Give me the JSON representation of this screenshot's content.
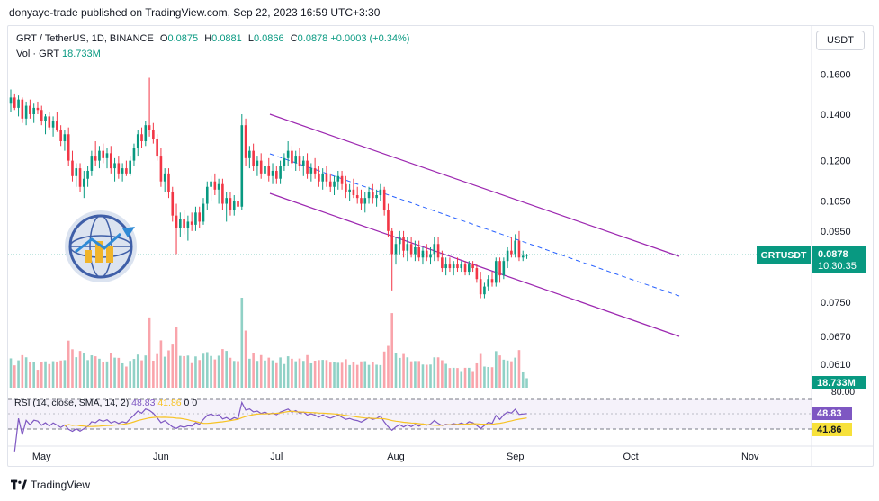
{
  "publish_line": "donyaye-trade published on TradingView.com, Sep 22, 2023 16:59 UTC+3:30",
  "legend": {
    "symbol": "GRT / TetherUS, 1D, BINANCE",
    "open_label": "O",
    "open": "0.0875",
    "high_label": "H",
    "high": "0.0881",
    "low_label": "L",
    "low": "0.0866",
    "close_label": "C",
    "close": "0.0878",
    "change": "+0.0003 (+0.34%)",
    "vol_label": "Vol · GRT",
    "vol": "18.733M"
  },
  "currency_button": "USDT",
  "price_badge": {
    "symbol": "GRTUSDT",
    "price": "0.0878",
    "countdown": "10:30:35"
  },
  "volume_badge": "18.733M",
  "rsi": {
    "label": "RSI (14, close, SMA, 14, 2)",
    "rsi_value": "48.83",
    "sma_value": "41.86",
    "extra_1": "0",
    "extra_2": "0",
    "level_label": "80.00"
  },
  "footer": {
    "brand": "TradingView"
  },
  "colors": {
    "up": "#089981",
    "down": "#f23645",
    "channel": "#9c27b0",
    "midline": "#2962ff",
    "rsi": "#7e57c2",
    "rsi_sma": "#f7c325"
  },
  "chart_data": {
    "type": "candlestick",
    "price_axis_ticks": [
      0.16,
      0.14,
      0.12,
      0.105,
      0.095,
      0.075,
      0.067,
      0.061
    ],
    "price_axis_labels": [
      "0.1600",
      "0.1400",
      "0.1200",
      "0.1050",
      "0.0950",
      "0.0750",
      "0.0670",
      "0.0610"
    ],
    "log_scale": true,
    "time_axis_labels": [
      "May",
      "Jun",
      "Jul",
      "Aug",
      "Sep",
      "Oct",
      "Nov"
    ],
    "time_axis_days": [
      0,
      31,
      61,
      92,
      123,
      153,
      184
    ],
    "last_price": 0.0878,
    "candles_start": "2023-04-23",
    "candles_ohlc": [
      [
        0.145,
        0.152,
        0.141,
        0.148
      ],
      [
        0.148,
        0.15,
        0.142,
        0.143
      ],
      [
        0.143,
        0.149,
        0.139,
        0.147
      ],
      [
        0.147,
        0.148,
        0.136,
        0.138
      ],
      [
        0.138,
        0.146,
        0.135,
        0.144
      ],
      [
        0.144,
        0.147,
        0.138,
        0.14
      ],
      [
        0.14,
        0.145,
        0.136,
        0.143
      ],
      [
        0.143,
        0.146,
        0.14,
        0.142
      ],
      [
        0.142,
        0.144,
        0.135,
        0.137
      ],
      [
        0.137,
        0.14,
        0.131,
        0.139
      ],
      [
        0.139,
        0.141,
        0.133,
        0.134
      ],
      [
        0.134,
        0.139,
        0.13,
        0.137
      ],
      [
        0.137,
        0.141,
        0.132,
        0.133
      ],
      [
        0.133,
        0.135,
        0.126,
        0.128
      ],
      [
        0.128,
        0.133,
        0.124,
        0.131
      ],
      [
        0.131,
        0.134,
        0.118,
        0.12
      ],
      [
        0.12,
        0.124,
        0.112,
        0.114
      ],
      [
        0.114,
        0.119,
        0.11,
        0.117
      ],
      [
        0.117,
        0.119,
        0.108,
        0.11
      ],
      [
        0.11,
        0.116,
        0.106,
        0.113
      ],
      [
        0.113,
        0.118,
        0.11,
        0.116
      ],
      [
        0.116,
        0.124,
        0.114,
        0.122
      ],
      [
        0.122,
        0.128,
        0.118,
        0.12
      ],
      [
        0.12,
        0.126,
        0.117,
        0.124
      ],
      [
        0.124,
        0.127,
        0.119,
        0.121
      ],
      [
        0.121,
        0.125,
        0.117,
        0.123
      ],
      [
        0.123,
        0.126,
        0.115,
        0.117
      ],
      [
        0.117,
        0.121,
        0.112,
        0.119
      ],
      [
        0.119,
        0.122,
        0.113,
        0.115
      ],
      [
        0.115,
        0.119,
        0.112,
        0.117
      ],
      [
        0.117,
        0.12,
        0.114,
        0.115
      ],
      [
        0.115,
        0.122,
        0.114,
        0.12
      ],
      [
        0.12,
        0.127,
        0.118,
        0.125
      ],
      [
        0.125,
        0.133,
        0.122,
        0.131
      ],
      [
        0.131,
        0.134,
        0.125,
        0.128
      ],
      [
        0.128,
        0.137,
        0.126,
        0.135
      ],
      [
        0.135,
        0.158,
        0.13,
        0.133
      ],
      [
        0.133,
        0.136,
        0.127,
        0.129
      ],
      [
        0.129,
        0.131,
        0.12,
        0.122
      ],
      [
        0.122,
        0.125,
        0.11,
        0.112
      ],
      [
        0.112,
        0.117,
        0.108,
        0.115
      ],
      [
        0.115,
        0.117,
        0.106,
        0.108
      ],
      [
        0.108,
        0.11,
        0.098,
        0.1
      ],
      [
        0.1,
        0.104,
        0.088,
        0.096
      ],
      [
        0.096,
        0.101,
        0.093,
        0.099
      ],
      [
        0.099,
        0.102,
        0.094,
        0.096
      ],
      [
        0.096,
        0.1,
        0.092,
        0.098
      ],
      [
        0.098,
        0.101,
        0.095,
        0.097
      ],
      [
        0.097,
        0.103,
        0.095,
        0.101
      ],
      [
        0.101,
        0.103,
        0.096,
        0.098
      ],
      [
        0.098,
        0.106,
        0.097,
        0.104
      ],
      [
        0.104,
        0.112,
        0.102,
        0.11
      ],
      [
        0.11,
        0.114,
        0.105,
        0.112
      ],
      [
        0.112,
        0.115,
        0.107,
        0.109
      ],
      [
        0.109,
        0.113,
        0.104,
        0.111
      ],
      [
        0.111,
        0.113,
        0.102,
        0.104
      ],
      [
        0.104,
        0.108,
        0.098,
        0.106
      ],
      [
        0.106,
        0.108,
        0.1,
        0.102
      ],
      [
        0.102,
        0.107,
        0.1,
        0.105
      ],
      [
        0.105,
        0.108,
        0.101,
        0.103
      ],
      [
        0.103,
        0.14,
        0.102,
        0.135
      ],
      [
        0.135,
        0.138,
        0.118,
        0.121
      ],
      [
        0.121,
        0.126,
        0.117,
        0.124
      ],
      [
        0.124,
        0.127,
        0.116,
        0.118
      ],
      [
        0.118,
        0.122,
        0.114,
        0.12
      ],
      [
        0.12,
        0.123,
        0.113,
        0.115
      ],
      [
        0.115,
        0.12,
        0.112,
        0.118
      ],
      [
        0.118,
        0.121,
        0.112,
        0.114
      ],
      [
        0.114,
        0.119,
        0.111,
        0.116
      ],
      [
        0.116,
        0.118,
        0.111,
        0.113
      ],
      [
        0.113,
        0.12,
        0.111,
        0.118
      ],
      [
        0.118,
        0.123,
        0.116,
        0.121
      ],
      [
        0.121,
        0.128,
        0.118,
        0.124
      ],
      [
        0.124,
        0.126,
        0.117,
        0.119
      ],
      [
        0.119,
        0.124,
        0.116,
        0.122
      ],
      [
        0.122,
        0.125,
        0.116,
        0.118
      ],
      [
        0.118,
        0.122,
        0.114,
        0.12
      ],
      [
        0.12,
        0.123,
        0.113,
        0.115
      ],
      [
        0.115,
        0.119,
        0.112,
        0.117
      ],
      [
        0.117,
        0.121,
        0.113,
        0.115
      ],
      [
        0.115,
        0.118,
        0.11,
        0.112
      ],
      [
        0.112,
        0.117,
        0.109,
        0.115
      ],
      [
        0.115,
        0.118,
        0.11,
        0.112
      ],
      [
        0.112,
        0.115,
        0.108,
        0.11
      ],
      [
        0.11,
        0.114,
        0.107,
        0.112
      ],
      [
        0.112,
        0.116,
        0.109,
        0.114
      ],
      [
        0.114,
        0.116,
        0.109,
        0.111
      ],
      [
        0.111,
        0.114,
        0.106,
        0.108
      ],
      [
        0.108,
        0.111,
        0.105,
        0.109
      ],
      [
        0.109,
        0.113,
        0.106,
        0.107
      ],
      [
        0.107,
        0.11,
        0.104,
        0.106
      ],
      [
        0.106,
        0.109,
        0.102,
        0.104
      ],
      [
        0.104,
        0.108,
        0.101,
        0.106
      ],
      [
        0.106,
        0.11,
        0.104,
        0.108
      ],
      [
        0.108,
        0.111,
        0.104,
        0.106
      ],
      [
        0.106,
        0.109,
        0.103,
        0.107
      ],
      [
        0.107,
        0.111,
        0.105,
        0.109
      ],
      [
        0.109,
        0.11,
        0.1,
        0.102
      ],
      [
        0.102,
        0.104,
        0.093,
        0.095
      ],
      [
        0.095,
        0.096,
        0.078,
        0.088
      ],
      [
        0.088,
        0.093,
        0.085,
        0.091
      ],
      [
        0.091,
        0.095,
        0.088,
        0.093
      ],
      [
        0.093,
        0.095,
        0.087,
        0.089
      ],
      [
        0.089,
        0.093,
        0.086,
        0.091
      ],
      [
        0.091,
        0.093,
        0.087,
        0.088
      ],
      [
        0.088,
        0.092,
        0.086,
        0.09
      ],
      [
        0.09,
        0.092,
        0.086,
        0.087
      ],
      [
        0.087,
        0.09,
        0.085,
        0.089
      ],
      [
        0.089,
        0.091,
        0.086,
        0.087
      ],
      [
        0.087,
        0.09,
        0.085,
        0.088
      ],
      [
        0.088,
        0.093,
        0.086,
        0.091
      ],
      [
        0.091,
        0.093,
        0.086,
        0.087
      ],
      [
        0.087,
        0.089,
        0.083,
        0.084
      ],
      [
        0.084,
        0.087,
        0.082,
        0.085
      ],
      [
        0.085,
        0.087,
        0.083,
        0.084
      ],
      [
        0.084,
        0.086,
        0.082,
        0.085
      ],
      [
        0.085,
        0.087,
        0.083,
        0.084
      ],
      [
        0.084,
        0.086,
        0.083,
        0.085
      ],
      [
        0.085,
        0.086,
        0.082,
        0.083
      ],
      [
        0.083,
        0.086,
        0.082,
        0.085
      ],
      [
        0.085,
        0.086,
        0.083,
        0.084
      ],
      [
        0.084,
        0.085,
        0.08,
        0.081
      ],
      [
        0.081,
        0.083,
        0.076,
        0.077
      ],
      [
        0.077,
        0.08,
        0.076,
        0.079
      ],
      [
        0.079,
        0.082,
        0.078,
        0.081
      ],
      [
        0.081,
        0.083,
        0.079,
        0.08
      ],
      [
        0.08,
        0.087,
        0.079,
        0.086
      ],
      [
        0.086,
        0.087,
        0.08,
        0.082
      ],
      [
        0.082,
        0.087,
        0.081,
        0.086
      ],
      [
        0.086,
        0.09,
        0.084,
        0.089
      ],
      [
        0.089,
        0.093,
        0.087,
        0.088
      ],
      [
        0.088,
        0.094,
        0.087,
        0.092
      ],
      [
        0.092,
        0.095,
        0.086,
        0.087
      ],
      [
        0.087,
        0.089,
        0.086,
        0.0875
      ],
      [
        0.0875,
        0.0881,
        0.0866,
        0.0878
      ]
    ],
    "volume_axis_label": "18.733M",
    "rsi_levels": [
      70,
      50,
      30
    ],
    "rsi_level_label": "80.00",
    "rsi_last": 48.83,
    "rsi_sma_last": 41.86
  }
}
